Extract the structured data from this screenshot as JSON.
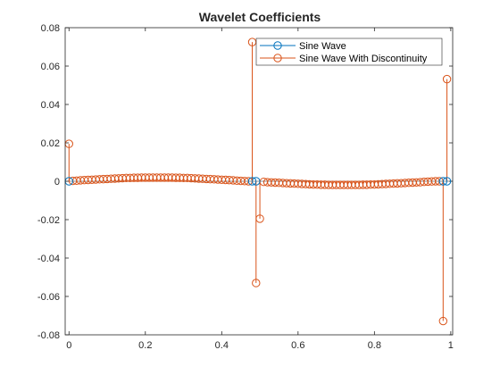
{
  "chart_data": {
    "type": "stem",
    "title": "Wavelet Coefficients",
    "xlabel": "",
    "ylabel": "",
    "xlim": [
      -0.01,
      1.005
    ],
    "ylim": [
      -0.08,
      0.08
    ],
    "xticks": [
      0,
      0.2,
      0.4,
      0.6,
      0.8,
      1
    ],
    "yticks": [
      -0.08,
      -0.06,
      -0.04,
      -0.02,
      0,
      0.02,
      0.04,
      0.06,
      0.08
    ],
    "xtick_labels": [
      "0",
      "0.2",
      "0.4",
      "0.6",
      "0.8",
      "1"
    ],
    "ytick_labels": [
      "-0.08",
      "-0.06",
      "-0.04",
      "-0.02",
      "0",
      "0.02",
      "0.04",
      "0.06",
      "0.08"
    ],
    "grid": false,
    "legend_position": "top-right",
    "series": [
      {
        "name": "Sine Wave",
        "color": "#0072BD",
        "x": [
          0,
          0.48,
          0.49,
          0.98,
          0.99
        ],
        "y": [
          0,
          0,
          0,
          0,
          0
        ]
      },
      {
        "name": "Sine Wave With Discontinuity",
        "color": "#D95319",
        "x": [
          0,
          0.01,
          0.02,
          0.03,
          0.04,
          0.05,
          0.06,
          0.07,
          0.08,
          0.09,
          0.1,
          0.11,
          0.12,
          0.13,
          0.14,
          0.15,
          0.16,
          0.17,
          0.18,
          0.19,
          0.2,
          0.21,
          0.22,
          0.23,
          0.24,
          0.25,
          0.26,
          0.27,
          0.28,
          0.29,
          0.3,
          0.31,
          0.32,
          0.33,
          0.34,
          0.35,
          0.36,
          0.37,
          0.38,
          0.39,
          0.4,
          0.41,
          0.42,
          0.43,
          0.44,
          0.45,
          0.46,
          0.47,
          0.48,
          0.49,
          0.5,
          0.51,
          0.52,
          0.53,
          0.54,
          0.55,
          0.56,
          0.57,
          0.58,
          0.59,
          0.6,
          0.61,
          0.62,
          0.63,
          0.64,
          0.65,
          0.66,
          0.67,
          0.68,
          0.69,
          0.7,
          0.71,
          0.72,
          0.73,
          0.74,
          0.75,
          0.76,
          0.77,
          0.78,
          0.79,
          0.8,
          0.81,
          0.82,
          0.83,
          0.84,
          0.85,
          0.86,
          0.87,
          0.88,
          0.89,
          0.9,
          0.91,
          0.92,
          0.93,
          0.94,
          0.95,
          0.96,
          0.97,
          0.98,
          0.99
        ],
        "y": [
          0.0195,
          0.0002,
          0.0003,
          0.0005,
          0.0006,
          0.0007,
          0.0008,
          0.0009,
          0.001,
          0.0011,
          0.0012,
          0.0013,
          0.0014,
          0.0015,
          0.0016,
          0.0017,
          0.0017,
          0.0018,
          0.0018,
          0.0019,
          0.0019,
          0.0019,
          0.0019,
          0.0019,
          0.0019,
          0.0019,
          0.0019,
          0.0019,
          0.0018,
          0.0018,
          0.0017,
          0.0017,
          0.0016,
          0.0015,
          0.0014,
          0.0013,
          0.0012,
          0.0011,
          0.001,
          0.0009,
          0.0008,
          0.0007,
          0.0006,
          0.0005,
          0.0003,
          0.0002,
          0.0001,
          0.0,
          0.0725,
          -0.053,
          -0.0195,
          -0.0003,
          -0.0005,
          -0.0006,
          -0.0007,
          -0.0008,
          -0.0009,
          -0.001,
          -0.0011,
          -0.0012,
          -0.0013,
          -0.0014,
          -0.0015,
          -0.0016,
          -0.0017,
          -0.0017,
          -0.0018,
          -0.0018,
          -0.0019,
          -0.0019,
          -0.0019,
          -0.0019,
          -0.0019,
          -0.0019,
          -0.0019,
          -0.0019,
          -0.0019,
          -0.0018,
          -0.0018,
          -0.0017,
          -0.0017,
          -0.0016,
          -0.0015,
          -0.0014,
          -0.0013,
          -0.0012,
          -0.0011,
          -0.001,
          -0.0009,
          -0.0008,
          -0.0007,
          -0.0006,
          -0.0005,
          -0.0003,
          -0.0002,
          -0.0001,
          0.0,
          0.0,
          -0.0728,
          0.0532
        ]
      }
    ]
  }
}
